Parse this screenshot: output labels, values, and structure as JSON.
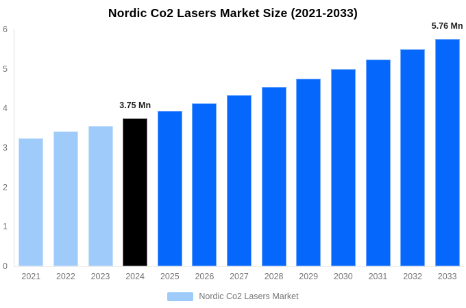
{
  "title": "Nordic Co2 Lasers Market Size (2021-2033)",
  "colors": {
    "historical": "#9ecbf9",
    "base_year": "#000000",
    "forecast": "#0667fc",
    "axis_text": "#757575",
    "title_text": "#000000",
    "annotation_text": "#1f1f1f",
    "axis_line": "#dddddd",
    "background": "#ffffff"
  },
  "legend": {
    "label": "Nordic Co2 Lasers Market",
    "swatch_color": "#9ecbf9"
  },
  "chart_data": {
    "type": "bar",
    "title": "Nordic Co2 Lasers Market Size (2021-2033)",
    "unit": "Mn",
    "categories": [
      "2021",
      "2022",
      "2023",
      "2024",
      "2025",
      "2026",
      "2027",
      "2028",
      "2029",
      "2030",
      "2031",
      "2032",
      "2033"
    ],
    "values": [
      3.25,
      3.42,
      3.56,
      3.75,
      3.93,
      4.12,
      4.33,
      4.54,
      4.76,
      4.99,
      5.23,
      5.49,
      5.76
    ],
    "bar_roles": [
      "historical",
      "historical",
      "historical",
      "base_year",
      "forecast",
      "forecast",
      "forecast",
      "forecast",
      "forecast",
      "forecast",
      "forecast",
      "forecast",
      "forecast"
    ],
    "annotations": [
      {
        "category": "2024",
        "text": "3.75 Mn"
      },
      {
        "category": "2033",
        "text": "5.76 Mn"
      }
    ],
    "xlabel": "",
    "ylabel": "",
    "ylim": [
      0,
      6
    ],
    "yticks": [
      0,
      1,
      2,
      3,
      4,
      5,
      6
    ],
    "grid": false,
    "legend_position": "bottom",
    "legend_entries": [
      "Nordic Co2 Lasers Market"
    ]
  }
}
